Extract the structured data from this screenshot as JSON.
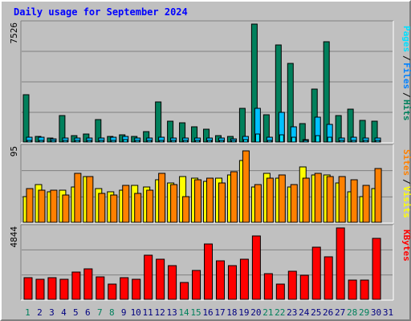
{
  "title": "Daily usage for September 2024",
  "colors": {
    "background": "#c0c0c0",
    "panel": "#c0c0c0",
    "gridline": "#808080",
    "hits": "#00805c",
    "files": "#00c0ff",
    "pages": "#00e0ff",
    "visits": "#ffff00",
    "sites": "#ff8000",
    "kbytes": "#ff0000",
    "title": "#0000ff",
    "weekday_label": "#000080",
    "weekend_label": "#00805c"
  },
  "chart_data": [
    {
      "type": "bar",
      "panel": "hits-files-pages",
      "ylabel_max": "7526",
      "ylim": [
        0,
        7526
      ],
      "legend": [
        {
          "label": "Hits",
          "color": "#00805c"
        },
        {
          "label": "Files",
          "color": "#0080ff"
        },
        {
          "label": "Pages",
          "color": "#00e0ff"
        }
      ],
      "categories": [
        "1",
        "2",
        "3",
        "4",
        "5",
        "6",
        "7",
        "8",
        "9",
        "10",
        "11",
        "12",
        "13",
        "14",
        "15",
        "16",
        "17",
        "18",
        "19",
        "20",
        "21",
        "22",
        "23",
        "24",
        "25",
        "26",
        "27",
        "28",
        "29",
        "30",
        "31"
      ],
      "series": [
        {
          "name": "Hits",
          "color": "#00805c",
          "values": [
            3000,
            350,
            250,
            1700,
            400,
            500,
            1400,
            350,
            450,
            350,
            650,
            2550,
            1300,
            1200,
            950,
            800,
            400,
            350,
            2150,
            7450,
            1750,
            6150,
            5000,
            1150,
            3350,
            6350,
            1700,
            2100,
            1350,
            1300,
            0
          ]
        },
        {
          "name": "Files",
          "color": "#00c0ff",
          "values": [
            300,
            300,
            200,
            250,
            250,
            250,
            250,
            300,
            350,
            250,
            250,
            300,
            250,
            250,
            250,
            250,
            250,
            200,
            350,
            2150,
            300,
            1900,
            950,
            150,
            1600,
            1100,
            250,
            300,
            250,
            250,
            0
          ]
        },
        {
          "name": "Pages",
          "color": "#00e0ff",
          "values": [
            120,
            120,
            100,
            110,
            110,
            110,
            120,
            120,
            130,
            110,
            110,
            120,
            110,
            110,
            110,
            110,
            110,
            100,
            140,
            500,
            120,
            450,
            300,
            80,
            400,
            300,
            110,
            120,
            110,
            110,
            0
          ]
        }
      ]
    },
    {
      "type": "bar",
      "panel": "visits-sites",
      "ylabel_max": "95",
      "ylim": [
        0,
        95
      ],
      "legend": [
        {
          "label": "Visits",
          "color": "#ffff00"
        },
        {
          "label": "Sites",
          "color": "#ff8000"
        }
      ],
      "categories": [
        "1",
        "2",
        "3",
        "4",
        "5",
        "6",
        "7",
        "8",
        "9",
        "10",
        "11",
        "12",
        "13",
        "14",
        "15",
        "16",
        "17",
        "18",
        "19",
        "20",
        "21",
        "22",
        "23",
        "24",
        "25",
        "26",
        "27",
        "28",
        "29",
        "30",
        "31"
      ],
      "series": [
        {
          "name": "Visits",
          "color": "#ffff00",
          "values": [
            32,
            48,
            38,
            40,
            44,
            58,
            42,
            38,
            40,
            46,
            44,
            54,
            50,
            58,
            56,
            52,
            56,
            60,
            78,
            44,
            62,
            56,
            44,
            70,
            60,
            60,
            50,
            38,
            32,
            42,
            0
          ]
        },
        {
          "name": "Sites",
          "color": "#ff8000",
          "values": [
            42,
            40,
            40,
            34,
            62,
            58,
            36,
            34,
            46,
            36,
            40,
            62,
            48,
            32,
            54,
            56,
            50,
            64,
            90,
            48,
            56,
            60,
            48,
            56,
            62,
            58,
            58,
            54,
            46,
            68,
            0
          ]
        }
      ]
    },
    {
      "type": "bar",
      "panel": "kbytes",
      "ylabel_max": "4844",
      "ylim": [
        0,
        4844
      ],
      "legend": [
        {
          "label": "KBytes",
          "color": "#ff0000"
        }
      ],
      "categories": [
        "1",
        "2",
        "3",
        "4",
        "5",
        "6",
        "7",
        "8",
        "9",
        "10",
        "11",
        "12",
        "13",
        "14",
        "15",
        "16",
        "17",
        "18",
        "19",
        "20",
        "21",
        "22",
        "23",
        "24",
        "25",
        "26",
        "27",
        "28",
        "29",
        "30",
        "31"
      ],
      "series": [
        {
          "name": "KBytes",
          "color": "#ff0000",
          "values": [
            1450,
            1330,
            1430,
            1330,
            1850,
            2020,
            1520,
            1040,
            1450,
            1330,
            2970,
            2670,
            2260,
            1120,
            1960,
            3720,
            2580,
            2240,
            2670,
            4250,
            1700,
            1040,
            1860,
            1620,
            3490,
            2870,
            4780,
            1270,
            1270,
            4090,
            0
          ]
        }
      ]
    }
  ],
  "x_labels": [
    {
      "text": "1",
      "weekend": true
    },
    {
      "text": "2",
      "weekend": false
    },
    {
      "text": "3",
      "weekend": false
    },
    {
      "text": "4",
      "weekend": false
    },
    {
      "text": "5",
      "weekend": false
    },
    {
      "text": "6",
      "weekend": false
    },
    {
      "text": "7",
      "weekend": true
    },
    {
      "text": "8",
      "weekend": true
    },
    {
      "text": "9",
      "weekend": false
    },
    {
      "text": "10",
      "weekend": false
    },
    {
      "text": "11",
      "weekend": false
    },
    {
      "text": "12",
      "weekend": false
    },
    {
      "text": "13",
      "weekend": false
    },
    {
      "text": "14",
      "weekend": true
    },
    {
      "text": "15",
      "weekend": true
    },
    {
      "text": "16",
      "weekend": false
    },
    {
      "text": "17",
      "weekend": false
    },
    {
      "text": "18",
      "weekend": false
    },
    {
      "text": "19",
      "weekend": false
    },
    {
      "text": "20",
      "weekend": false
    },
    {
      "text": "21",
      "weekend": true
    },
    {
      "text": "22",
      "weekend": true
    },
    {
      "text": "23",
      "weekend": false
    },
    {
      "text": "24",
      "weekend": false
    },
    {
      "text": "25",
      "weekend": false
    },
    {
      "text": "26",
      "weekend": false
    },
    {
      "text": "27",
      "weekend": false
    },
    {
      "text": "28",
      "weekend": true
    },
    {
      "text": "29",
      "weekend": true
    },
    {
      "text": "30",
      "weekend": false
    },
    {
      "text": "31",
      "weekend": false
    }
  ]
}
